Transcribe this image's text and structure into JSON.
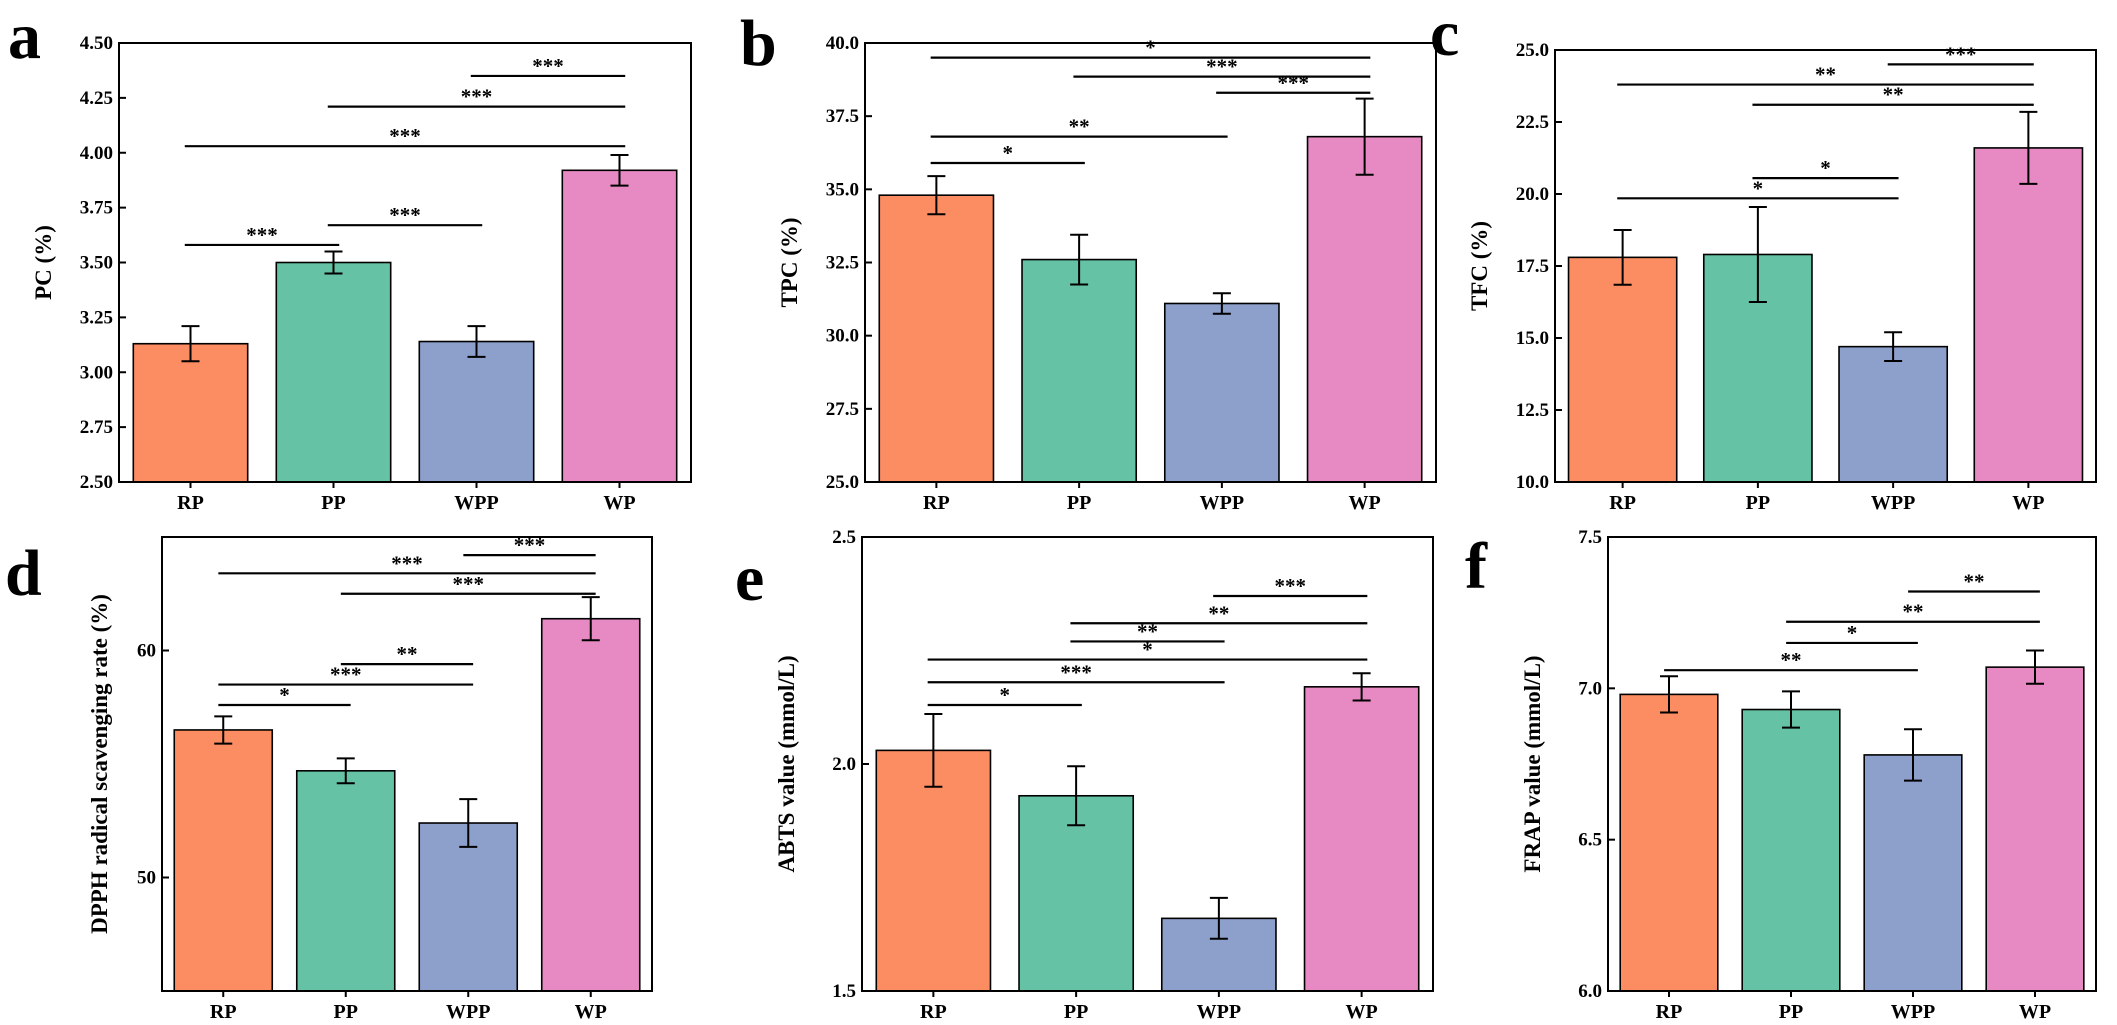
{
  "colors": {
    "RP": "#FC8D62",
    "PP": "#66C2A5",
    "WPP": "#8DA0CB",
    "WP": "#E78AC3"
  },
  "chart_data": [
    {
      "panel": "a",
      "type": "bar",
      "categories": [
        "RP",
        "PP",
        "WPP",
        "WP"
      ],
      "values": [
        3.13,
        3.5,
        3.14,
        3.92
      ],
      "errors": [
        0.08,
        0.05,
        0.07,
        0.07
      ],
      "ylabel": "PC (%)",
      "ylim": [
        2.5,
        4.5
      ],
      "yticks": [
        "2.50",
        "2.75",
        "3.00",
        "3.25",
        "3.50",
        "3.75",
        "4.00",
        "4.25",
        "4.50"
      ],
      "significance": [
        {
          "from": 0,
          "to": 1,
          "y": 3.58,
          "label": "***"
        },
        {
          "from": 1,
          "to": 2,
          "y": 3.67,
          "label": "***"
        },
        {
          "from": 0,
          "to": 3,
          "y": 4.03,
          "label": "***"
        },
        {
          "from": 1,
          "to": 3,
          "y": 4.21,
          "label": "***"
        },
        {
          "from": 2,
          "to": 3,
          "y": 4.35,
          "label": "***"
        }
      ]
    },
    {
      "panel": "b",
      "type": "bar",
      "categories": [
        "RP",
        "PP",
        "WPP",
        "WP"
      ],
      "values": [
        34.8,
        32.6,
        31.1,
        36.8
      ],
      "errors": [
        0.65,
        0.85,
        0.35,
        1.3
      ],
      "ylabel": "TPC (%)",
      "ylim": [
        25.0,
        40.0
      ],
      "yticks": [
        "25.0",
        "27.5",
        "30.0",
        "32.5",
        "35.0",
        "37.5",
        "40.0"
      ],
      "significance": [
        {
          "from": 0,
          "to": 1,
          "y": 35.9,
          "label": "*"
        },
        {
          "from": 0,
          "to": 2,
          "y": 36.8,
          "label": "**"
        },
        {
          "from": 2,
          "to": 3,
          "y": 38.3,
          "label": "***"
        },
        {
          "from": 1,
          "to": 3,
          "y": 38.85,
          "label": "***"
        },
        {
          "from": 0,
          "to": 3,
          "y": 39.5,
          "label": "*"
        }
      ]
    },
    {
      "panel": "c",
      "type": "bar",
      "categories": [
        "RP",
        "PP",
        "WPP",
        "WP"
      ],
      "values": [
        17.8,
        17.9,
        14.7,
        21.6
      ],
      "errors": [
        0.95,
        1.65,
        0.5,
        1.25
      ],
      "ylabel": "TFC (%)",
      "ylim": [
        10.0,
        25.0
      ],
      "yticks": [
        "10.0",
        "12.5",
        "15.0",
        "17.5",
        "20.0",
        "22.5",
        "25.0"
      ],
      "significance": [
        {
          "from": 0,
          "to": 2,
          "y": 19.85,
          "label": "*"
        },
        {
          "from": 1,
          "to": 2,
          "y": 20.55,
          "label": "*"
        },
        {
          "from": 1,
          "to": 3,
          "y": 23.1,
          "label": "**"
        },
        {
          "from": 0,
          "to": 3,
          "y": 23.8,
          "label": "**"
        },
        {
          "from": 2,
          "to": 3,
          "y": 24.5,
          "label": "***"
        }
      ]
    },
    {
      "panel": "d",
      "type": "bar",
      "categories": [
        "RP",
        "PP",
        "WPP",
        "WP"
      ],
      "values": [
        56.5,
        54.7,
        52.4,
        61.4
      ],
      "errors": [
        0.6,
        0.55,
        1.05,
        0.95
      ],
      "ylabel": "DPPH radical scavenging rate (%)",
      "ylim": [
        45,
        65
      ],
      "yticks": [
        "50",
        "60"
      ],
      "ytick_values": [
        50,
        60
      ],
      "significance": [
        {
          "from": 0,
          "to": 1,
          "y": 57.6,
          "label": "*"
        },
        {
          "from": 0,
          "to": 2,
          "y": 58.5,
          "label": "***"
        },
        {
          "from": 1,
          "to": 2,
          "y": 59.4,
          "label": "**"
        },
        {
          "from": 1,
          "to": 3,
          "y": 62.5,
          "label": "***"
        },
        {
          "from": 0,
          "to": 3,
          "y": 63.4,
          "label": "***"
        },
        {
          "from": 2,
          "to": 3,
          "y": 64.2,
          "label": "***"
        }
      ]
    },
    {
      "panel": "e",
      "type": "bar",
      "categories": [
        "RP",
        "PP",
        "WPP",
        "WP"
      ],
      "values": [
        2.03,
        1.93,
        1.66,
        2.17
      ],
      "errors": [
        0.08,
        0.065,
        0.045,
        0.03
      ],
      "ylabel": "ABTS value (mmol/L)",
      "ylim": [
        1.5,
        2.5
      ],
      "yticks": [
        "1.5",
        "2.0",
        "2.5"
      ],
      "ytick_values": [
        1.5,
        2.0,
        2.5
      ],
      "significance": [
        {
          "from": 0,
          "to": 1,
          "y": 2.13,
          "label": "*"
        },
        {
          "from": 0,
          "to": 2,
          "y": 2.18,
          "label": "***"
        },
        {
          "from": 0,
          "to": 3,
          "y": 2.23,
          "label": "*"
        },
        {
          "from": 1,
          "to": 2,
          "y": 2.27,
          "label": "**"
        },
        {
          "from": 1,
          "to": 3,
          "y": 2.31,
          "label": "**"
        },
        {
          "from": 2,
          "to": 3,
          "y": 2.37,
          "label": "***"
        }
      ]
    },
    {
      "panel": "f",
      "type": "bar",
      "categories": [
        "RP",
        "PP",
        "WPP",
        "WP"
      ],
      "values": [
        6.98,
        6.93,
        6.78,
        7.07
      ],
      "errors": [
        0.06,
        0.06,
        0.085,
        0.055
      ],
      "ylabel": "FRAP value (mmol/L)",
      "ylim": [
        6.0,
        7.5
      ],
      "yticks": [
        "6.0",
        "6.5",
        "7.0",
        "7.5"
      ],
      "ytick_values": [
        6.0,
        6.5,
        7.0,
        7.5
      ],
      "significance": [
        {
          "from": 0,
          "to": 2,
          "y": 7.06,
          "label": "**"
        },
        {
          "from": 1,
          "to": 2,
          "y": 7.15,
          "label": "*"
        },
        {
          "from": 1,
          "to": 3,
          "y": 7.22,
          "label": "**"
        },
        {
          "from": 2,
          "to": 3,
          "y": 7.32,
          "label": "**"
        }
      ]
    }
  ]
}
